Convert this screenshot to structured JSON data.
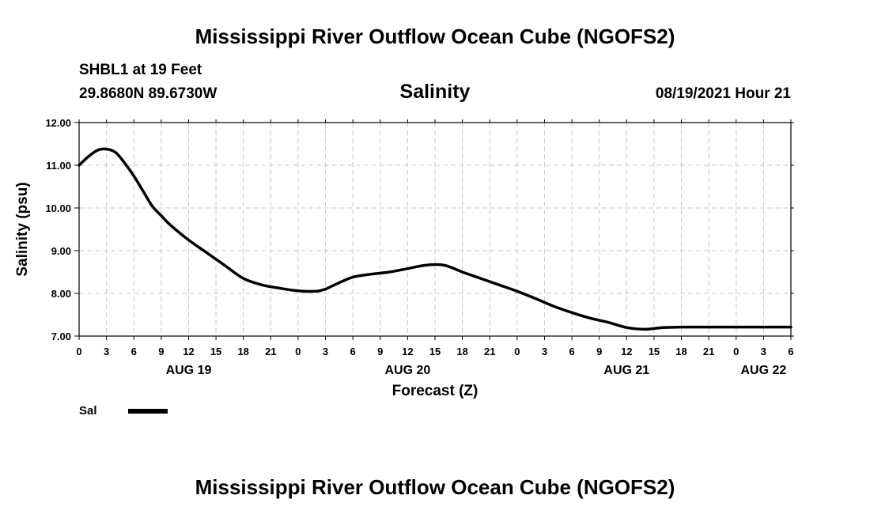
{
  "header": {
    "title": "Mississippi River Outflow Ocean Cube (NGOFS2)",
    "station": "SHBL1 at 19 Feet",
    "coordinates": "29.8680N  89.6730W",
    "datetime": "08/19/2021 Hour 21"
  },
  "footer": {
    "title": "Mississippi River Outflow Ocean Cube (NGOFS2)"
  },
  "colors": {
    "series": "#000000",
    "grid": "#c8c8c8",
    "background": "#ffffff"
  },
  "chart_data": {
    "type": "line",
    "title": "Salinity",
    "xlabel": "Forecast (Z)",
    "ylabel": "Salinity (psu)",
    "xlim": [
      0,
      78
    ],
    "ylim": [
      7.0,
      12.0
    ],
    "grid": true,
    "y_ticks": [
      7.0,
      8.0,
      9.0,
      10.0,
      11.0,
      12.0
    ],
    "y_tick_labels": [
      "7.00",
      "8.00",
      "9.00",
      "10.00",
      "11.00",
      "12.00"
    ],
    "x_ticks": [
      0,
      3,
      6,
      9,
      12,
      15,
      18,
      21,
      24,
      27,
      30,
      33,
      36,
      39,
      42,
      45,
      48,
      51,
      54,
      57,
      60,
      63,
      66,
      69,
      72,
      75,
      78
    ],
    "x_tick_labels": [
      "0",
      "3",
      "6",
      "9",
      "12",
      "15",
      "18",
      "21",
      "0",
      "3",
      "6",
      "9",
      "12",
      "15",
      "18",
      "21",
      "0",
      "3",
      "6",
      "9",
      "12",
      "15",
      "18",
      "21",
      "0",
      "3",
      "6"
    ],
    "day_labels": [
      {
        "text": "AUG 19",
        "hour": 12
      },
      {
        "text": "AUG 20",
        "hour": 36
      },
      {
        "text": "AUG 21",
        "hour": 60
      },
      {
        "text": "AUG 22",
        "hour": 75
      }
    ],
    "legend": [
      {
        "name": "Sal",
        "color": "#000000"
      }
    ],
    "series": [
      {
        "name": "Sal",
        "x": [
          0,
          1,
          2,
          3,
          4,
          5,
          6,
          7,
          8,
          9,
          10,
          12,
          14,
          16,
          18,
          20,
          22,
          24,
          26,
          27,
          28,
          30,
          32,
          34,
          36,
          38,
          40,
          42,
          44,
          46,
          48,
          50,
          52,
          54,
          56,
          58,
          60,
          62,
          64,
          66,
          68,
          70,
          72,
          74,
          76,
          78
        ],
        "y": [
          11.0,
          11.2,
          11.35,
          11.38,
          11.3,
          11.05,
          10.75,
          10.4,
          10.05,
          9.82,
          9.6,
          9.25,
          8.95,
          8.65,
          8.35,
          8.2,
          8.12,
          8.06,
          8.05,
          8.1,
          8.2,
          8.38,
          8.45,
          8.5,
          8.58,
          8.66,
          8.66,
          8.5,
          8.35,
          8.2,
          8.05,
          7.88,
          7.7,
          7.55,
          7.42,
          7.32,
          7.2,
          7.16,
          7.2,
          7.21,
          7.21,
          7.21,
          7.21,
          7.21,
          7.21,
          7.21
        ]
      }
    ]
  }
}
